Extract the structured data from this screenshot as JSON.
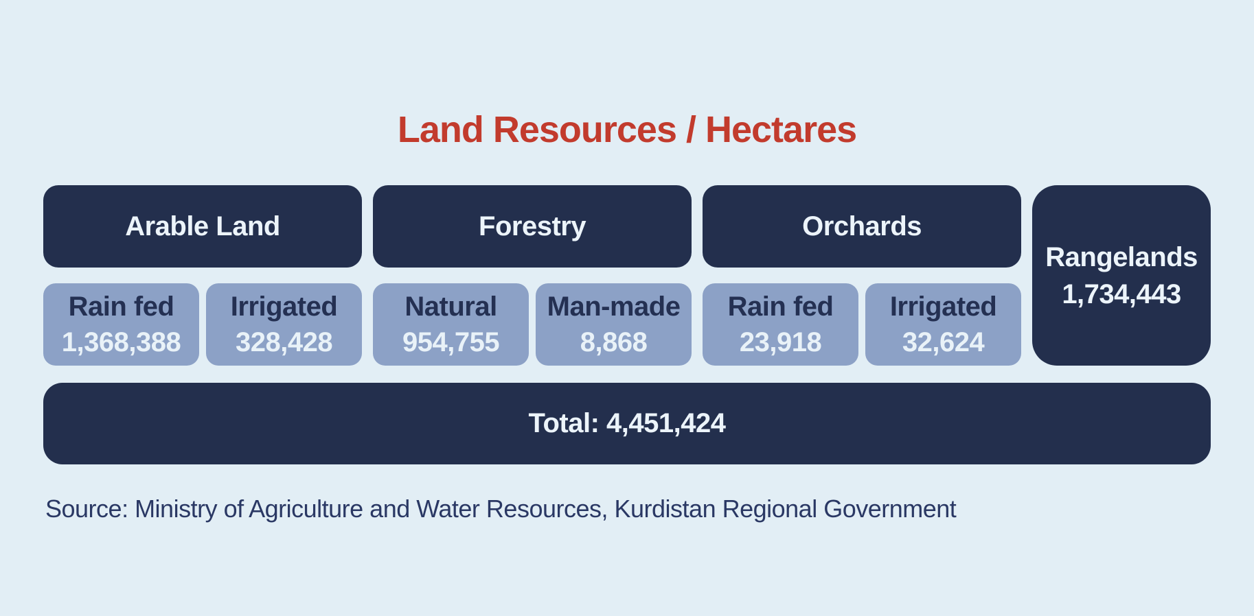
{
  "title": "Land Resources / Hectares",
  "groups": [
    {
      "label": "Arable Land",
      "subs": [
        {
          "label": "Rain fed",
          "value": "1,368,388"
        },
        {
          "label": "Irrigated",
          "value": "328,428"
        }
      ]
    },
    {
      "label": "Forestry",
      "subs": [
        {
          "label": "Natural",
          "value": "954,755"
        },
        {
          "label": "Man-made",
          "value": "8,868"
        }
      ]
    },
    {
      "label": "Orchards",
      "subs": [
        {
          "label": "Rain fed",
          "value": "23,918"
        },
        {
          "label": "Irrigated",
          "value": "32,624"
        }
      ]
    }
  ],
  "rangelands": {
    "label": "Rangelands",
    "value": "1,734,443"
  },
  "total_label": "Total: 4,451,424",
  "source": "Source: Ministry of Agriculture and Water Resources, Kurdistan Regional Government",
  "colors": {
    "background": "#e2eef5",
    "navy_box": "#232f4d",
    "slate_box": "#8ca1c6",
    "title_red": "#c23b2d",
    "light_text": "#ecf4fa",
    "navy_text": "#243052",
    "source_text": "#2a3864"
  },
  "chart_data": {
    "type": "table",
    "title": "Land Resources / Hectares",
    "unit": "hectares",
    "categories": [
      {
        "name": "Arable Land",
        "children": [
          {
            "name": "Rain fed",
            "value": 1368388
          },
          {
            "name": "Irrigated",
            "value": 328428
          }
        ]
      },
      {
        "name": "Forestry",
        "children": [
          {
            "name": "Natural",
            "value": 954755
          },
          {
            "name": "Man-made",
            "value": 8868
          }
        ]
      },
      {
        "name": "Orchards",
        "children": [
          {
            "name": "Rain fed",
            "value": 23918
          },
          {
            "name": "Irrigated",
            "value": 32624
          }
        ]
      },
      {
        "name": "Rangelands",
        "value": 1734443
      }
    ],
    "total": 4451424,
    "source": "Ministry of Agriculture and Water Resources, Kurdistan Regional Government",
    "legend_position": "none",
    "grid": false
  }
}
